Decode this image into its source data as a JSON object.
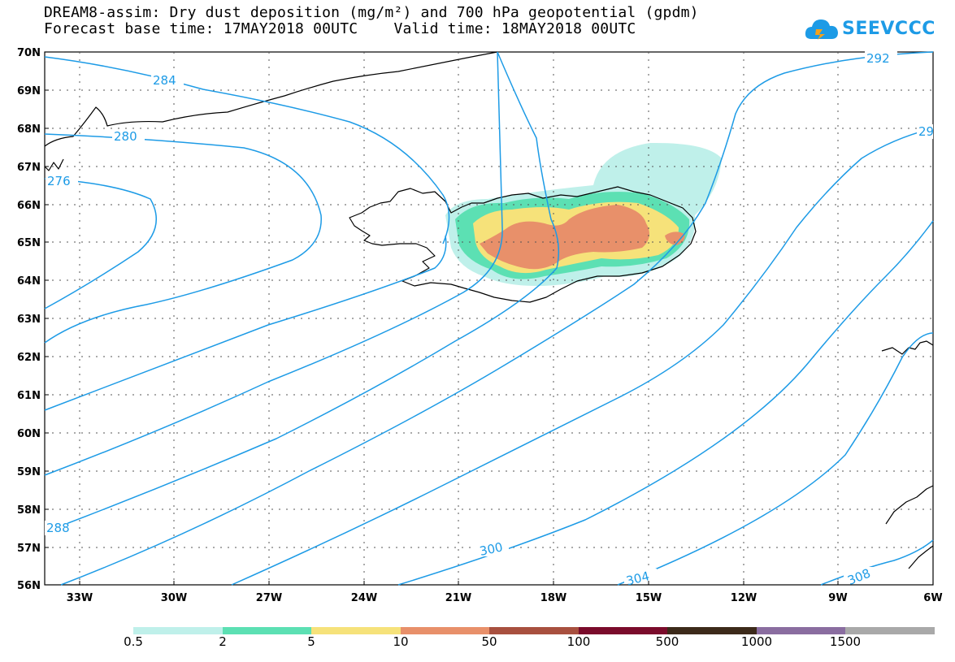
{
  "title": {
    "line1": "DREAM8-assim: Dry dust deposition (mg/m²) and 700 hPa geopotential (gpdm)",
    "line2": "Forecast base time: 17MAY2018 00UTC    Valid time: 18MAY2018 00UTC"
  },
  "logo": {
    "text": "SEEVCCC",
    "icon": "cloud-icon"
  },
  "map": {
    "lat_labels": [
      "70N",
      "69N",
      "68N",
      "67N",
      "66N",
      "65N",
      "64N",
      "63N",
      "62N",
      "61N",
      "60N",
      "59N",
      "58N",
      "57N",
      "56N"
    ],
    "lon_labels": [
      "33W",
      "30W",
      "27W",
      "24W",
      "21W",
      "18W",
      "15W",
      "12W",
      "9W",
      "6W"
    ],
    "contour_labels": [
      "284",
      "280",
      "276",
      "288",
      "292",
      "29",
      "300",
      "304",
      "308"
    ],
    "contour_color": "#1d9be6",
    "grid": true
  },
  "legend": {
    "thresholds": [
      "0.5",
      "2",
      "5",
      "10",
      "50",
      "100",
      "500",
      "1000",
      "1500"
    ],
    "colors": [
      "#bff0ea",
      "#5ce0b3",
      "#f6e27a",
      "#e8906a",
      "#a8503f",
      "#7a0b2b",
      "#3c2a1a",
      "#8a6da0",
      "#a9a9a9"
    ]
  }
}
